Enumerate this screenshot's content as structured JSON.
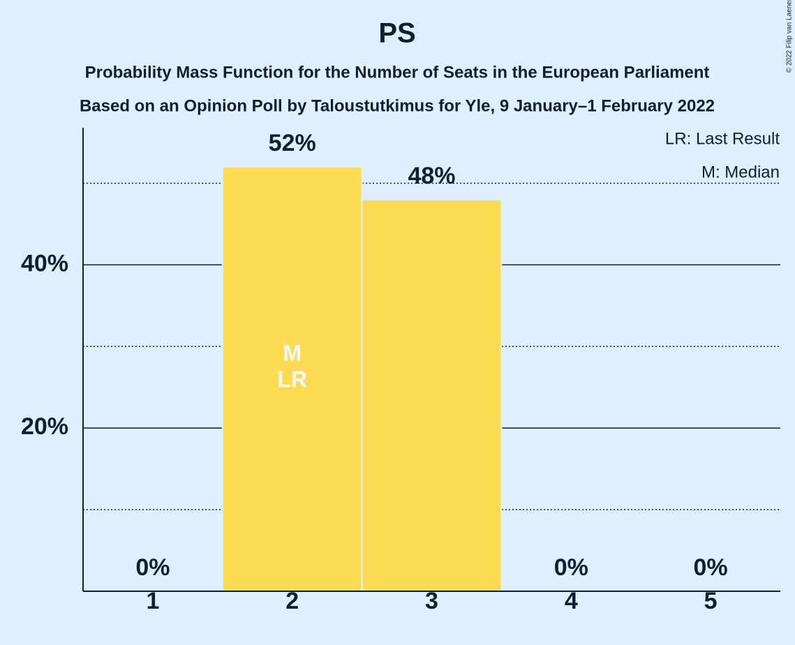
{
  "chart_data": {
    "type": "bar",
    "title": "PS",
    "subtitle": [
      "Probability Mass Function for the Number of Seats in the European Parliament",
      "Based on an Opinion Poll by Taloustutkimus for Yle, 9 January–1 February 2022"
    ],
    "categories": [
      "1",
      "2",
      "3",
      "4",
      "5"
    ],
    "values": [
      0,
      52,
      48,
      0,
      0
    ],
    "value_labels": [
      "0%",
      "52%",
      "48%",
      "0%",
      "0%"
    ],
    "color": "#fddb55",
    "ylim": [
      0,
      56.8
    ],
    "yticks": [
      {
        "value": 20,
        "label": "20%"
      },
      {
        "value": 40,
        "label": "40%"
      }
    ],
    "minor_yticks": [
      10,
      30,
      50
    ],
    "grid": true,
    "median": 2,
    "median_label": "M",
    "last_result": 2,
    "last_result_label": "LR",
    "legend": [
      "LR: Last Result",
      "M: Median"
    ],
    "credit": "© 2022 Filip van Laenen"
  }
}
